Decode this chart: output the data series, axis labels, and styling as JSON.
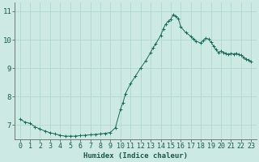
{
  "xlabel": "Humidex (Indice chaleur)",
  "ylabel": "",
  "background_color": "#cce9e4",
  "line_color": "#1a6b5a",
  "marker_color": "#1a6b5a",
  "grid_color": "#b0d8d0",
  "xlim": [
    -0.5,
    23.5
  ],
  "ylim": [
    6.5,
    11.3
  ],
  "yticks": [
    7,
    8,
    9,
    10,
    11
  ],
  "xticks": [
    0,
    1,
    2,
    3,
    4,
    5,
    6,
    7,
    8,
    9,
    10,
    11,
    12,
    13,
    14,
    15,
    16,
    17,
    18,
    19,
    20,
    21,
    22,
    23
  ],
  "hours": [
    0,
    0.5,
    1,
    1.5,
    2,
    2.5,
    3,
    3.5,
    4,
    4.5,
    5,
    5.5,
    6,
    6.5,
    7,
    7.5,
    8,
    8.5,
    9,
    9.5,
    10,
    10.25,
    10.5,
    11,
    11.5,
    12,
    12.5,
    13,
    13.25,
    13.5,
    14,
    14.25,
    14.5,
    14.75,
    15,
    15.25,
    15.5,
    15.75,
    16,
    16.5,
    17,
    17.25,
    17.5,
    18,
    18.25,
    18.5,
    18.75,
    19,
    19.25,
    19.5,
    19.75,
    20,
    20.25,
    20.5,
    20.75,
    21,
    21.25,
    21.5,
    21.75,
    22,
    22.25,
    22.5,
    22.75,
    23
  ],
  "values": [
    7.2,
    7.1,
    7.05,
    6.93,
    6.85,
    6.78,
    6.72,
    6.68,
    6.63,
    6.6,
    6.6,
    6.6,
    6.62,
    6.63,
    6.65,
    6.66,
    6.68,
    6.7,
    6.73,
    6.9,
    7.55,
    7.78,
    8.1,
    8.45,
    8.72,
    9.0,
    9.25,
    9.55,
    9.72,
    9.85,
    10.15,
    10.38,
    10.55,
    10.65,
    10.72,
    10.88,
    10.82,
    10.75,
    10.45,
    10.25,
    10.12,
    10.02,
    9.95,
    9.88,
    9.98,
    10.05,
    10.02,
    9.92,
    9.78,
    9.65,
    9.55,
    9.6,
    9.55,
    9.52,
    9.48,
    9.52,
    9.5,
    9.52,
    9.48,
    9.45,
    9.38,
    9.32,
    9.28,
    9.22
  ]
}
